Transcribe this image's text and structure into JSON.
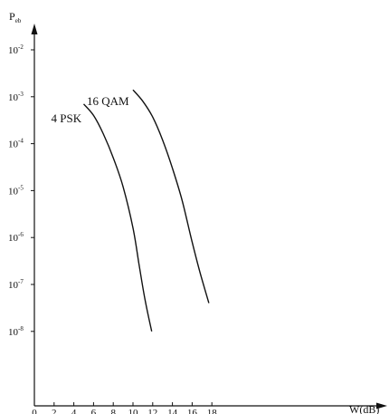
{
  "chart_data": {
    "type": "line",
    "title": "",
    "xlabel": "W(dB)",
    "ylabel": "P_eb",
    "ylabel_main": "P",
    "ylabel_sub": "eb",
    "x_ticks": [
      "0",
      "2",
      "4",
      "6",
      "8",
      "10",
      "12",
      "14",
      "16",
      "18"
    ],
    "xlim": [
      0,
      19
    ],
    "y_scale": "log",
    "ylim": [
      1e-09,
      0.01
    ],
    "y_ticks": [
      {
        "value": 0.01,
        "base": "10",
        "exp": "-2"
      },
      {
        "value": 0.001,
        "base": "10",
        "exp": "-3"
      },
      {
        "value": 0.0001,
        "base": "10",
        "exp": "-4"
      },
      {
        "value": 1e-05,
        "base": "10",
        "exp": "-5"
      },
      {
        "value": 1e-06,
        "base": "10",
        "exp": "-6"
      },
      {
        "value": 1e-07,
        "base": "10",
        "exp": "-7"
      },
      {
        "value": 1e-08,
        "base": "10",
        "exp": "-8"
      }
    ],
    "grid": false,
    "legend": "none",
    "series": [
      {
        "name": "4 PSK",
        "x": [
          5.0,
          6.0,
          7.0,
          8.0,
          9.0,
          10.0,
          10.6,
          11.2,
          11.9
        ],
        "y": [
          0.0007,
          0.0004,
          0.00016,
          5e-05,
          1.2e-05,
          1.6e-06,
          2.8e-07,
          5e-08,
          1e-08
        ]
      },
      {
        "name": "16 QAM",
        "x": [
          10.0,
          11.0,
          12.0,
          13.0,
          14.0,
          15.0,
          16.0,
          16.8,
          17.7
        ],
        "y": [
          0.0014,
          0.0008,
          0.00037,
          0.00012,
          3e-05,
          6e-06,
          8e-07,
          1.8e-07,
          4e-08
        ]
      }
    ]
  }
}
